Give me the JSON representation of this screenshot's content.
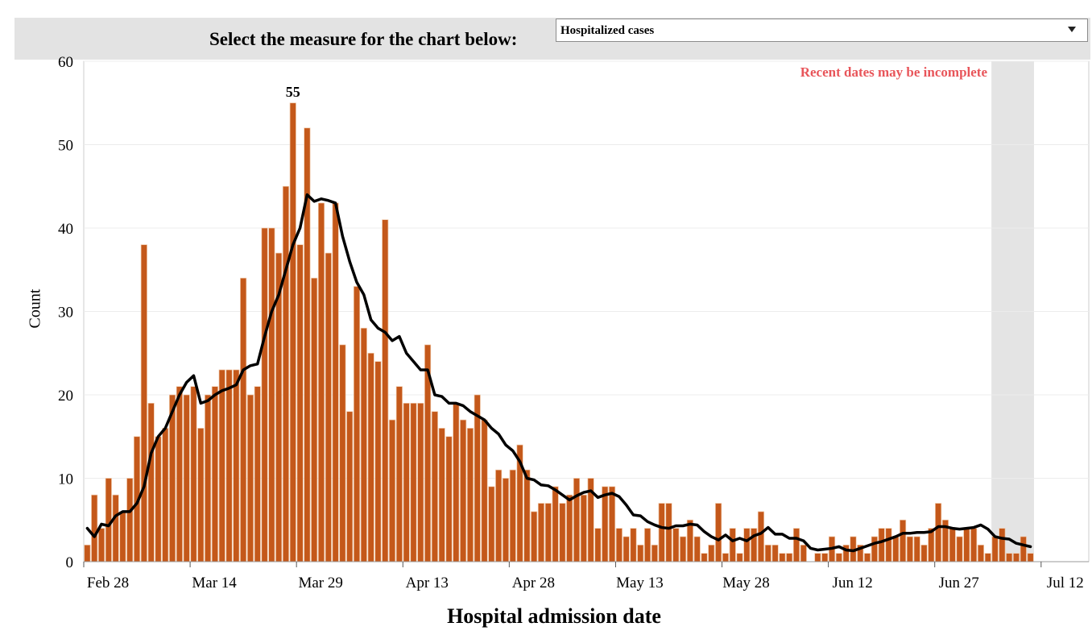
{
  "control": {
    "prompt": "Select the measure for the chart below:",
    "selected_measure": "Hospitalized cases"
  },
  "colors": {
    "bar": "#c4581a",
    "bar_outline": "#f0c8a8",
    "average_line": "#000000",
    "control_bar": "#e3e3e3",
    "incomplete_shade": "#e4e4e4",
    "note": "#e8555a"
  },
  "chart_data": {
    "type": "bar",
    "xlabel": "Hospital admission date",
    "ylabel": "Count",
    "ylim": [
      0,
      60
    ],
    "yticks": [
      0,
      10,
      20,
      30,
      40,
      50,
      60
    ],
    "xtick_labels": [
      "Feb 28",
      "Mar 14",
      "Mar 29",
      "Apr 13",
      "Apr 28",
      "May 13",
      "May 28",
      "Jun 12",
      "Jun 27",
      "Jul 12"
    ],
    "grid": "horizontal",
    "incomplete_note": "Recent dates may be incomplete",
    "incomplete_period_bars": 6,
    "peak_label": "55",
    "series": [
      {
        "type": "bar",
        "values": [
          2,
          8,
          4,
          10,
          8,
          6,
          10,
          15,
          38,
          19,
          15,
          16,
          20,
          21,
          20,
          21,
          16,
          20,
          21,
          23,
          23,
          23,
          34,
          20,
          21,
          40,
          40,
          37,
          45,
          55,
          38,
          52,
          34,
          43,
          37,
          43,
          26,
          18,
          33,
          28,
          25,
          24,
          41,
          17,
          21,
          19,
          19,
          19,
          26,
          18,
          16,
          15,
          19,
          17,
          16,
          20,
          17,
          9,
          11,
          10,
          11,
          14,
          11,
          6,
          7,
          7,
          9,
          7,
          8,
          10,
          8,
          10,
          4,
          9,
          9,
          4,
          3,
          4,
          2,
          4,
          2,
          7,
          7,
          4,
          3,
          5,
          3,
          1,
          2,
          7,
          1,
          4,
          1,
          4,
          4,
          6,
          2,
          2,
          1,
          1,
          4,
          2,
          0,
          1,
          1,
          3,
          1,
          2,
          3,
          2,
          1,
          3,
          4,
          4,
          3,
          5,
          3,
          3,
          2,
          4,
          7,
          5,
          4,
          3,
          4,
          4,
          2,
          1,
          3,
          4,
          1,
          1,
          3,
          1
        ]
      },
      {
        "type": "line",
        "values": [
          4,
          3,
          4.5,
          4.3,
          5.5,
          6,
          6,
          7,
          9,
          13,
          15,
          16,
          18,
          20,
          21.5,
          22.3,
          19,
          19.3,
          20,
          20.5,
          20.8,
          21.2,
          23,
          23.5,
          23.7,
          27,
          30,
          32,
          35,
          38,
          40,
          44,
          43.2,
          43.5,
          43.3,
          43,
          39,
          36,
          33.5,
          32,
          29,
          28,
          27.5,
          26.5,
          27,
          25,
          24,
          23,
          23,
          20,
          19.8,
          19,
          19,
          18.7,
          18,
          17.5,
          17,
          16,
          15.3,
          14,
          13.3,
          12,
          10,
          9.8,
          9.2,
          9.1,
          8.6,
          8,
          7.4,
          7.9,
          8.3,
          8.5,
          7.7,
          8,
          8.2,
          7.8,
          6.8,
          5.6,
          5.5,
          4.8,
          4.4,
          4.1,
          4,
          4.3,
          4.3,
          4.5,
          4.4,
          3.6,
          3,
          2.6,
          3.2,
          2.5,
          2.8,
          2.5,
          3.1,
          3.4,
          4.1,
          3.3,
          3.3,
          2.8,
          2.8,
          2.5,
          1.6,
          1.4,
          1.5,
          1.6,
          1.8,
          1.4,
          1.3,
          1.6,
          1.9,
          2.2,
          2.4,
          2.7,
          3.0,
          3.4,
          3.4,
          3.5,
          3.5,
          3.6,
          4.2,
          4.2,
          4.0,
          3.9,
          4.0,
          4.1,
          4.4,
          3.9,
          3.0,
          2.8,
          2.7,
          2.2,
          2.0,
          1.8
        ]
      }
    ]
  }
}
